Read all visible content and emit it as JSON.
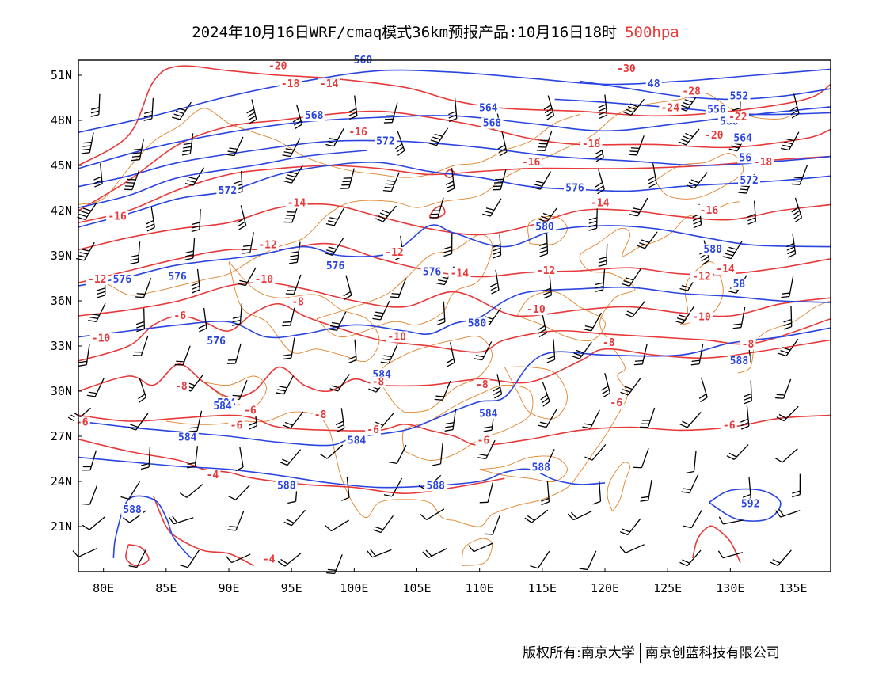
{
  "title": {
    "main": "2024年10月16日WRF/cmaq模式36km预报产品:10月16日18时",
    "level": "500hpa"
  },
  "copyright": {
    "prefix": "版权所有:",
    "org1": "南京大学",
    "org2": "南京创蓝科技有限公司"
  },
  "colors": {
    "height": "#2a44e0",
    "temperature": "#e8393a",
    "border": "#e0832a",
    "wind": "#000000",
    "frame": "#000000"
  },
  "axes": {
    "lon_range": [
      78,
      138
    ],
    "lat_range": [
      18,
      52
    ],
    "x_ticks": [
      "80E",
      "85E",
      "90E",
      "95E",
      "100E",
      "105E",
      "110E",
      "115E",
      "120E",
      "125E",
      "130E",
      "135E"
    ],
    "x_tick_values": [
      80,
      85,
      90,
      95,
      100,
      105,
      110,
      115,
      120,
      125,
      130,
      135
    ],
    "y_ticks": [
      "21N",
      "24N",
      "27N",
      "30N",
      "33N",
      "36N",
      "39N",
      "42N",
      "45N",
      "48N",
      "51N"
    ],
    "y_tick_values": [
      21,
      24,
      27,
      30,
      33,
      36,
      39,
      42,
      45,
      48,
      51
    ]
  },
  "height_labels": [
    {
      "t": "560",
      "lon": 100.7,
      "lat": 51.8
    },
    {
      "t": "568",
      "lon": 96.8,
      "lat": 48.1
    },
    {
      "t": "564",
      "lon": 110.7,
      "lat": 48.6
    },
    {
      "t": "568",
      "lon": 111.0,
      "lat": 47.6
    },
    {
      "t": "572",
      "lon": 102.5,
      "lat": 46.4
    },
    {
      "t": "572",
      "lon": 89.9,
      "lat": 43.1
    },
    {
      "t": "576",
      "lon": 117.6,
      "lat": 43.3
    },
    {
      "t": "580",
      "lon": 115.2,
      "lat": 40.7
    },
    {
      "t": "580",
      "lon": 128.6,
      "lat": 39.2
    },
    {
      "t": "576",
      "lon": 81.5,
      "lat": 37.2
    },
    {
      "t": "576",
      "lon": 85.9,
      "lat": 37.4
    },
    {
      "t": "576",
      "lon": 98.5,
      "lat": 38.1
    },
    {
      "t": "576",
      "lon": 106.2,
      "lat": 37.7
    },
    {
      "t": "580",
      "lon": 109.8,
      "lat": 34.3
    },
    {
      "t": "576",
      "lon": 89.0,
      "lat": 33.1
    },
    {
      "t": "588",
      "lon": 130.7,
      "lat": 31.8
    },
    {
      "t": "584",
      "lon": 102.2,
      "lat": 30.9
    },
    {
      "t": "584",
      "lon": 110.7,
      "lat": 28.3
    },
    {
      "t": "584",
      "lon": 86.7,
      "lat": 26.7
    },
    {
      "t": "584",
      "lon": 100.2,
      "lat": 26.5
    },
    {
      "t": "588",
      "lon": 94.6,
      "lat": 23.5
    },
    {
      "t": "588",
      "lon": 106.5,
      "lat": 23.5
    },
    {
      "t": "588",
      "lon": 114.9,
      "lat": 24.7
    },
    {
      "t": "588",
      "lon": 82.3,
      "lat": 21.9
    },
    {
      "t": "592",
      "lon": 131.6,
      "lat": 22.3
    },
    {
      "t": "48",
      "lon": 123.9,
      "lat": 50.2
    },
    {
      "t": "552",
      "lon": 130.7,
      "lat": 49.4
    },
    {
      "t": "556",
      "lon": 128.9,
      "lat": 48.5
    },
    {
      "t": "560",
      "lon": 129.9,
      "lat": 47.7
    },
    {
      "t": "564",
      "lon": 131.0,
      "lat": 46.6
    },
    {
      "t": "56",
      "lon": 131.2,
      "lat": 45.3
    },
    {
      "t": "572",
      "lon": 131.5,
      "lat": 43.8
    },
    {
      "t": "58",
      "lon": 130.7,
      "lat": 36.9
    },
    {
      "t": "584",
      "lon": 89.8,
      "lat": 29.0
    },
    {
      "t": "584",
      "lon": 89.5,
      "lat": 28.8
    }
  ],
  "temperature_labels": [
    {
      "t": "-20",
      "lon": 93.9,
      "lat": 51.4
    },
    {
      "t": "-18",
      "lon": 94.9,
      "lat": 50.2
    },
    {
      "t": "-14",
      "lon": 98.0,
      "lat": 50.2
    },
    {
      "t": "-16",
      "lon": 100.3,
      "lat": 47.0
    },
    {
      "t": "-16",
      "lon": 81.1,
      "lat": 41.4
    },
    {
      "t": "-14",
      "lon": 95.4,
      "lat": 42.3
    },
    {
      "t": "-12",
      "lon": 93.1,
      "lat": 39.5
    },
    {
      "t": "-12",
      "lon": 103.2,
      "lat": 39.0
    },
    {
      "t": "-12",
      "lon": 79.5,
      "lat": 37.2
    },
    {
      "t": "-10",
      "lon": 92.8,
      "lat": 37.2
    },
    {
      "t": "-8",
      "lon": 95.5,
      "lat": 35.7
    },
    {
      "t": "-6",
      "lon": 86.1,
      "lat": 34.8
    },
    {
      "t": "-10",
      "lon": 79.8,
      "lat": 33.3
    },
    {
      "t": "-10",
      "lon": 103.4,
      "lat": 33.4
    },
    {
      "t": "-14",
      "lon": 108.4,
      "lat": 37.6
    },
    {
      "t": "-10",
      "lon": 114.5,
      "lat": 35.2
    },
    {
      "t": "-12",
      "lon": 115.3,
      "lat": 37.8
    },
    {
      "t": "-14",
      "lon": 119.6,
      "lat": 42.3
    },
    {
      "t": "-30",
      "lon": 121.7,
      "lat": 51.2
    },
    {
      "t": "-28",
      "lon": 126.9,
      "lat": 49.7
    },
    {
      "t": "-24",
      "lon": 125.2,
      "lat": 48.6
    },
    {
      "t": "-22",
      "lon": 130.6,
      "lat": 48.0
    },
    {
      "t": "-20",
      "lon": 128.7,
      "lat": 46.8
    },
    {
      "t": "-18",
      "lon": 118.9,
      "lat": 46.2
    },
    {
      "t": "-16",
      "lon": 114.1,
      "lat": 45.0
    },
    {
      "t": "-18",
      "lon": 132.6,
      "lat": 45.0
    },
    {
      "t": "-16",
      "lon": 128.3,
      "lat": 41.8
    },
    {
      "t": "-14",
      "lon": 129.6,
      "lat": 37.9
    },
    {
      "t": "-12",
      "lon": 127.7,
      "lat": 37.4
    },
    {
      "t": "-10",
      "lon": 127.7,
      "lat": 34.7
    },
    {
      "t": "-8",
      "lon": 131.4,
      "lat": 32.9
    },
    {
      "t": "-8",
      "lon": 120.3,
      "lat": 33.0
    },
    {
      "t": "-8",
      "lon": 86.2,
      "lat": 30.1
    },
    {
      "t": "-8",
      "lon": 101.9,
      "lat": 30.4
    },
    {
      "t": "-8",
      "lon": 110.2,
      "lat": 30.2
    },
    {
      "t": "-6",
      "lon": 91.7,
      "lat": 28.5
    },
    {
      "t": "-8",
      "lon": 97.3,
      "lat": 28.2
    },
    {
      "t": "-6",
      "lon": 90.6,
      "lat": 27.5
    },
    {
      "t": "-6",
      "lon": 101.5,
      "lat": 27.2
    },
    {
      "t": "-6",
      "lon": 110.3,
      "lat": 26.5
    },
    {
      "t": "-6",
      "lon": 120.9,
      "lat": 29.0
    },
    {
      "t": "-6",
      "lon": 129.9,
      "lat": 27.5
    },
    {
      "t": "-6",
      "lon": 78.3,
      "lat": 27.7
    },
    {
      "t": "-4",
      "lon": 88.7,
      "lat": 24.2
    },
    {
      "t": "-4",
      "lon": 93.2,
      "lat": 18.6
    }
  ]
}
